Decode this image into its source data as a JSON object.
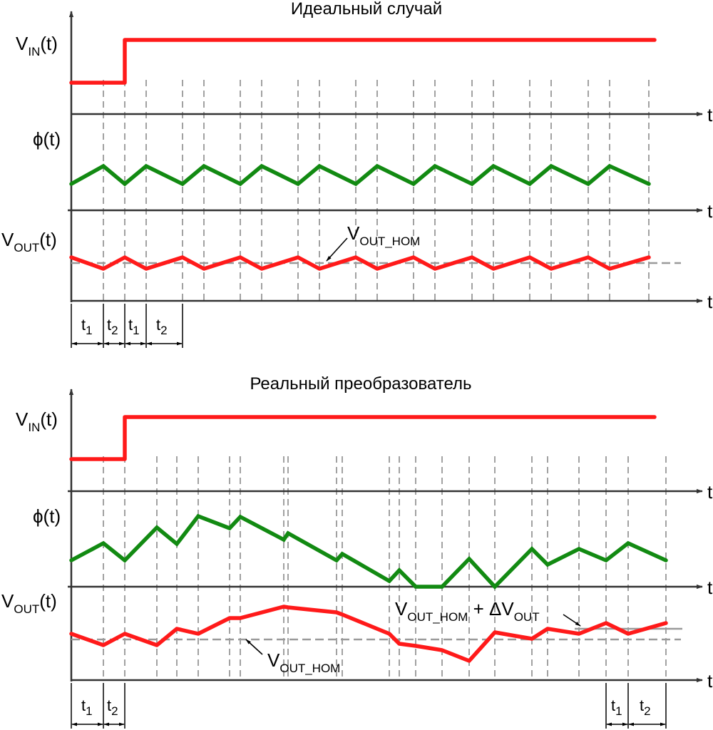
{
  "top": {
    "title": "Идеальный случай",
    "vin": {
      "main": "V",
      "sub": "IN",
      "tail": "(t)"
    },
    "phi": "ϕ(t)",
    "vout": {
      "main": "V",
      "sub": "OUT",
      "tail": "(t)"
    },
    "axis_t": "t",
    "annotation": {
      "main": "V",
      "sub": "OUT_НОМ"
    },
    "intervals": [
      {
        "main": "t",
        "sub": "1"
      },
      {
        "main": "t",
        "sub": "2"
      },
      {
        "main": "t",
        "sub": "1"
      },
      {
        "main": "t",
        "sub": "2"
      }
    ]
  },
  "bottom": {
    "title": "Реальный преобразователь",
    "vin": {
      "main": "V",
      "sub": "IN",
      "tail": "(t)"
    },
    "phi": "ϕ(t)",
    "vout": {
      "main": "V",
      "sub": "OUT",
      "tail": "(t)"
    },
    "axis_t": "t",
    "annotation_upper": {
      "main": "V",
      "sub": "OUT_НОМ",
      "plus": " + ΔV",
      "sub2": "OUT"
    },
    "annotation_lower": {
      "main": "V",
      "sub": "OUT_НОМ"
    },
    "intervals_left": [
      {
        "main": "t",
        "sub": "1"
      },
      {
        "main": "t",
        "sub": "2"
      }
    ],
    "intervals_right": [
      {
        "main": "t",
        "sub": "1"
      },
      {
        "main": "t",
        "sub": "2"
      }
    ]
  },
  "colors": {
    "vin": "#ff1a1a",
    "phi": "#128a12",
    "vout": "#ff1a1a",
    "reference": "#9a9a9a",
    "axes": "#333333"
  }
}
